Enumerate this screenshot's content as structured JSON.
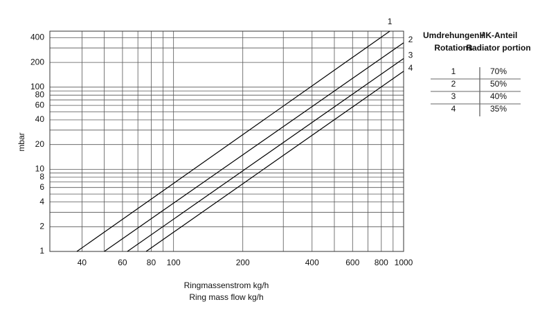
{
  "chart_data": {
    "type": "line",
    "y_label": "mbar",
    "x_label": [
      "Ringmassenstrom  kg/h",
      "Ring mass flow kg/h"
    ],
    "xscale": "log",
    "yscale": "log",
    "xlim": [
      29,
      1000
    ],
    "ylim": [
      1,
      480
    ],
    "xticks": [
      40,
      60,
      80,
      100,
      200,
      400,
      600,
      800,
      1000
    ],
    "xgrid": [
      50,
      70,
      90,
      300,
      500,
      700,
      900
    ],
    "yticks": [
      1,
      2,
      4,
      6,
      8,
      10,
      20,
      40,
      60,
      80,
      100,
      200,
      400
    ],
    "ygrid": [
      3,
      5,
      7,
      9,
      30,
      50,
      70,
      90,
      300
    ],
    "grid": true,
    "series": [
      {
        "name": "1",
        "color": "#000000",
        "x": [
          38,
          871
        ],
        "values": [
          1,
          480
        ]
      },
      {
        "name": "2",
        "color": "#000000",
        "x": [
          50,
          1000
        ],
        "values": [
          1,
          347
        ]
      },
      {
        "name": "3",
        "color": "#000000",
        "x": [
          63,
          1000
        ],
        "values": [
          1,
          223
        ]
      },
      {
        "name": "4",
        "color": "#000000",
        "x": [
          76,
          1000
        ],
        "values": [
          1,
          156
        ]
      }
    ]
  },
  "table": {
    "header": [
      [
        "Umdrehungen /",
        "Rotations"
      ],
      [
        "HK-Anteil",
        "Radiator portion"
      ]
    ],
    "rows": [
      [
        "1",
        "70%"
      ],
      [
        "2",
        "50%"
      ],
      [
        "3",
        "40%"
      ],
      [
        "4",
        "35%"
      ]
    ]
  }
}
